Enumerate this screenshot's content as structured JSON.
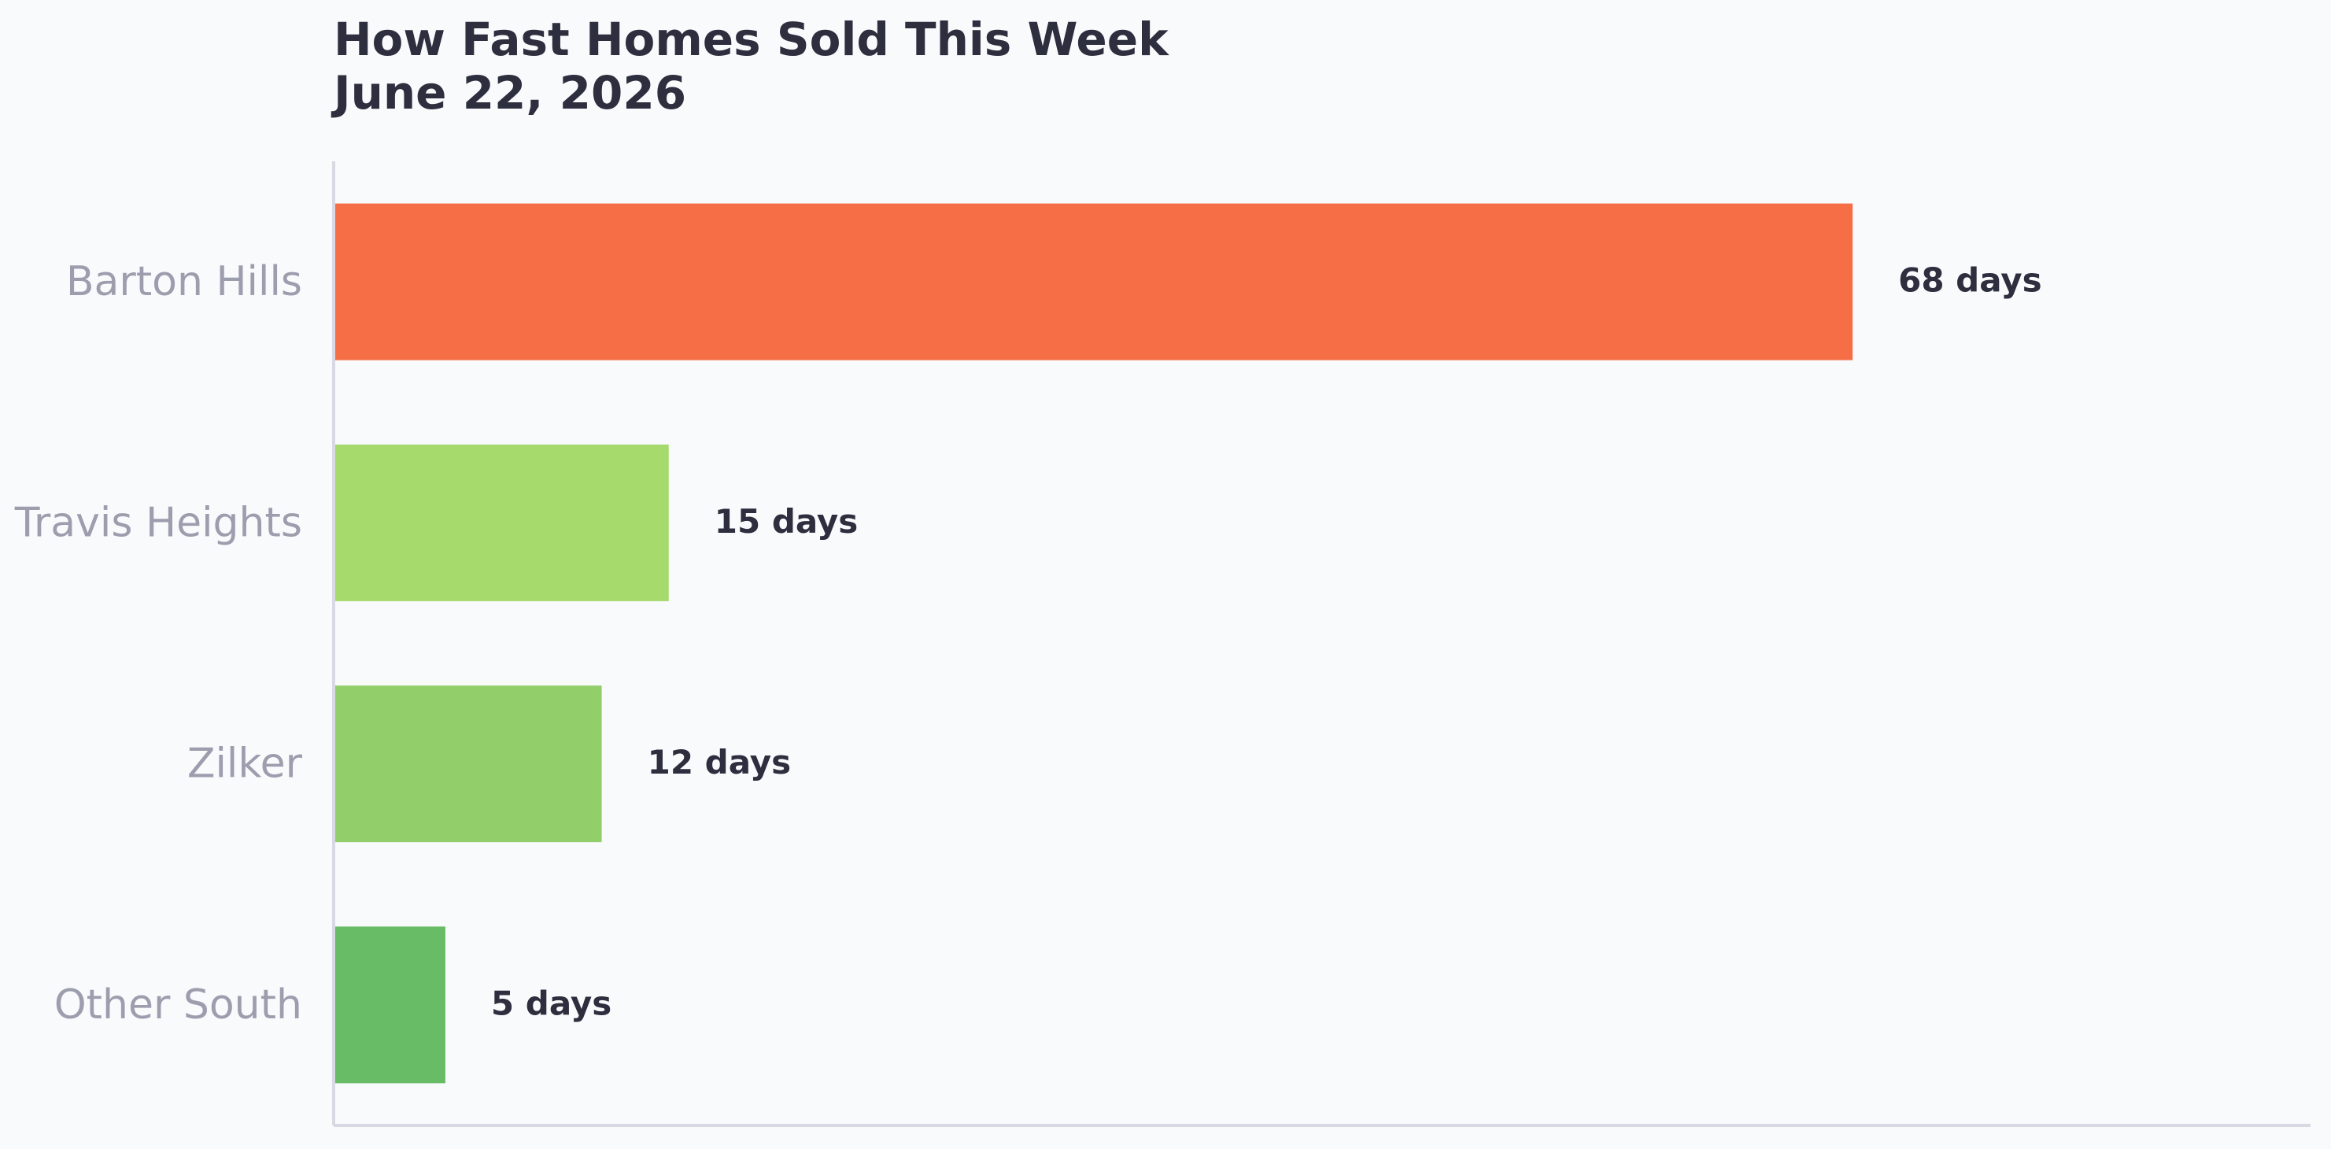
{
  "chart_data": {
    "type": "bar",
    "orientation": "horizontal",
    "title": "How Fast Homes Sold This Week",
    "subtitle": "June 22, 2026",
    "categories": [
      "Barton Hills",
      "Travis Heights",
      "Zilker",
      "Other South"
    ],
    "values": [
      68,
      15,
      12,
      5
    ],
    "value_labels": [
      "68 days",
      "15 days",
      "12 days",
      "5 days"
    ],
    "colors": [
      "#f56e46",
      "#a6da6d",
      "#92cf6a",
      "#67bc65"
    ],
    "xlim": [
      0,
      88.5
    ],
    "grid": false,
    "legend": "none"
  }
}
